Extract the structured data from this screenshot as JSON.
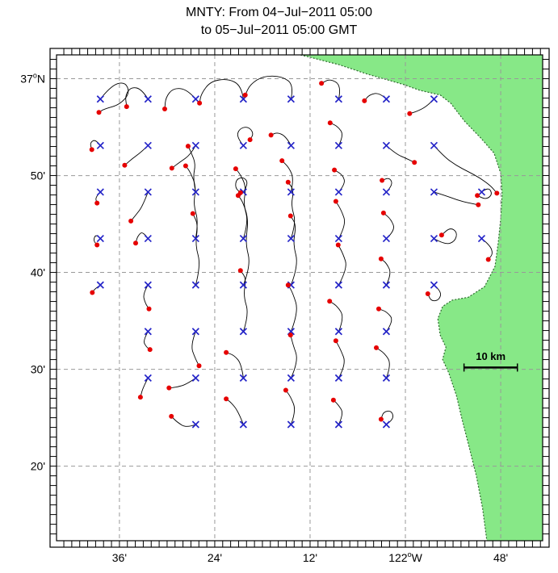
{
  "title": {
    "line1": "MNTY: From 04−Jul−2011 05:00",
    "line2": "to 05−Jul−2011 05:00 GMT"
  },
  "colors": {
    "land": "#87e887",
    "coast": "#2f6b2f",
    "grid": "#999999",
    "frame": "#000000",
    "trajectory": "#000000",
    "start_marker": "#2424c8",
    "end_marker": "#e60000",
    "text": "#000000"
  },
  "chart_data": {
    "type": "line",
    "subtype": "drifter-trajectory-map",
    "title": "MNTY: From 04−Jul−2011 05:00 to 05−Jul−2011 05:00 GMT",
    "xlim": [
      -122.732,
      -121.712
    ],
    "ylim": [
      36.205,
      37.041
    ],
    "grid": "dashed",
    "x_ticks": [
      {
        "value": -122.6,
        "label": "36'"
      },
      {
        "value": -122.4,
        "label": "24'"
      },
      {
        "value": -122.2,
        "label": "12'"
      },
      {
        "value": -122.0,
        "label": "122°W"
      },
      {
        "value": -121.8,
        "label": "48'"
      }
    ],
    "y_ticks": [
      {
        "value": 37.0,
        "label": "37°N"
      },
      {
        "value": 36.8333,
        "label": "50'"
      },
      {
        "value": 36.6667,
        "label": "40'"
      },
      {
        "value": 36.5,
        "label": "30'"
      },
      {
        "value": 36.3333,
        "label": "20'"
      }
    ],
    "scale_bar": {
      "label": "10 km",
      "lat": 36.503,
      "lon_from": -121.877,
      "lon_to": -121.765,
      "label_lat": 36.516
    },
    "markers": {
      "start": "blue-x",
      "end": "red-dot"
    },
    "land_polygon": [
      [
        -122.22,
        37.041
      ],
      [
        -122.139,
        37.024
      ],
      [
        -122.08,
        37.008
      ],
      [
        -122.004,
        36.99
      ],
      [
        -121.97,
        36.98
      ],
      [
        -121.927,
        36.972
      ],
      [
        -121.905,
        36.958
      ],
      [
        -121.876,
        36.927
      ],
      [
        -121.843,
        36.899
      ],
      [
        -121.814,
        36.872
      ],
      [
        -121.8,
        36.837
      ],
      [
        -121.797,
        36.802
      ],
      [
        -121.8,
        36.76
      ],
      [
        -121.805,
        36.719
      ],
      [
        -121.812,
        36.677
      ],
      [
        -121.834,
        36.642
      ],
      [
        -121.868,
        36.624
      ],
      [
        -121.902,
        36.619
      ],
      [
        -121.922,
        36.608
      ],
      [
        -121.932,
        36.587
      ],
      [
        -121.927,
        36.559
      ],
      [
        -121.915,
        36.538
      ],
      [
        -121.922,
        36.517
      ],
      [
        -121.909,
        36.494
      ],
      [
        -121.893,
        36.455
      ],
      [
        -121.881,
        36.413
      ],
      [
        -121.868,
        36.372
      ],
      [
        -121.851,
        36.316
      ],
      [
        -121.838,
        36.261
      ],
      [
        -121.829,
        36.205
      ],
      [
        -121.712,
        36.205
      ],
      [
        -121.712,
        37.041
      ]
    ],
    "trajectories": [
      [
        [
          -122.64,
          36.965
        ],
        [
          -122.618,
          36.988
        ],
        [
          -122.588,
          36.995
        ],
        [
          -122.578,
          36.975
        ],
        [
          -122.6,
          36.955
        ],
        [
          -122.632,
          36.948
        ],
        [
          -122.643,
          36.942
        ]
      ],
      [
        [
          -122.54,
          36.965
        ],
        [
          -122.553,
          36.982
        ],
        [
          -122.575,
          36.986
        ],
        [
          -122.588,
          36.972
        ],
        [
          -122.585,
          36.952
        ]
      ],
      [
        [
          -122.44,
          36.965
        ],
        [
          -122.458,
          36.982
        ],
        [
          -122.487,
          36.984
        ],
        [
          -122.503,
          36.968
        ],
        [
          -122.505,
          36.948
        ]
      ],
      [
        [
          -122.34,
          36.965
        ],
        [
          -122.344,
          36.988
        ],
        [
          -122.372,
          37.0
        ],
        [
          -122.408,
          36.996
        ],
        [
          -122.428,
          36.975
        ],
        [
          -122.432,
          36.958
        ]
      ],
      [
        [
          -122.24,
          36.965
        ],
        [
          -122.234,
          36.989
        ],
        [
          -122.258,
          37.004
        ],
        [
          -122.298,
          37.005
        ],
        [
          -122.326,
          36.99
        ],
        [
          -122.336,
          36.972
        ]
      ],
      [
        [
          -122.14,
          36.965
        ],
        [
          -122.134,
          36.988
        ],
        [
          -122.158,
          37.0
        ],
        [
          -122.176,
          36.992
        ]
      ],
      [
        [
          -122.04,
          36.965
        ],
        [
          -122.054,
          36.976
        ],
        [
          -122.075,
          36.973
        ],
        [
          -122.086,
          36.962
        ]
      ],
      [
        [
          -121.94,
          36.965
        ],
        [
          -121.954,
          36.953
        ],
        [
          -121.975,
          36.944
        ],
        [
          -121.991,
          36.94
        ]
      ],
      [
        [
          -122.64,
          36.885
        ],
        [
          -122.65,
          36.896
        ],
        [
          -122.662,
          36.89
        ],
        [
          -122.658,
          36.878
        ]
      ],
      [
        [
          -122.54,
          36.885
        ],
        [
          -122.554,
          36.874
        ],
        [
          -122.574,
          36.862
        ],
        [
          -122.589,
          36.851
        ]
      ],
      [
        [
          -122.44,
          36.885
        ],
        [
          -122.451,
          36.869
        ],
        [
          -122.474,
          36.856
        ],
        [
          -122.49,
          36.846
        ]
      ],
      [
        [
          -122.34,
          36.885
        ],
        [
          -122.354,
          36.899
        ],
        [
          -122.349,
          36.914
        ],
        [
          -122.33,
          36.918
        ],
        [
          -122.318,
          36.906
        ],
        [
          -122.326,
          36.895
        ]
      ],
      [
        [
          -122.24,
          36.885
        ],
        [
          -122.25,
          36.9
        ],
        [
          -122.268,
          36.908
        ],
        [
          -122.282,
          36.903
        ]
      ],
      [
        [
          -122.14,
          36.885
        ],
        [
          -122.129,
          36.903
        ],
        [
          -122.142,
          36.918
        ],
        [
          -122.158,
          36.924
        ]
      ],
      [
        [
          -122.04,
          36.885
        ],
        [
          -122.021,
          36.871
        ],
        [
          -121.996,
          36.862
        ],
        [
          -121.981,
          36.856
        ]
      ],
      [
        [
          -121.94,
          36.885
        ],
        [
          -121.919,
          36.866
        ],
        [
          -121.894,
          36.851
        ],
        [
          -121.868,
          36.84
        ],
        [
          -121.843,
          36.829
        ],
        [
          -121.82,
          36.815
        ],
        [
          -121.808,
          36.803
        ]
      ],
      [
        [
          -122.64,
          36.805
        ],
        [
          -122.651,
          36.796
        ],
        [
          -122.647,
          36.786
        ]
      ],
      [
        [
          -122.54,
          36.805
        ],
        [
          -122.551,
          36.781
        ],
        [
          -122.566,
          36.765
        ],
        [
          -122.576,
          36.755
        ]
      ],
      [
        [
          -122.44,
          36.805
        ],
        [
          -122.446,
          36.829
        ],
        [
          -122.44,
          36.853
        ],
        [
          -122.449,
          36.872
        ],
        [
          -122.456,
          36.884
        ]
      ],
      [
        [
          -122.34,
          36.805
        ],
        [
          -122.329,
          36.819
        ],
        [
          -122.339,
          36.831
        ],
        [
          -122.355,
          36.827
        ],
        [
          -122.357,
          36.812
        ],
        [
          -122.346,
          36.804
        ]
      ],
      [
        [
          -122.24,
          36.805
        ],
        [
          -122.234,
          36.827
        ],
        [
          -122.244,
          36.847
        ],
        [
          -122.259,
          36.859
        ]
      ],
      [
        [
          -122.14,
          36.805
        ],
        [
          -122.126,
          36.819
        ],
        [
          -122.131,
          36.834
        ],
        [
          -122.149,
          36.843
        ]
      ],
      [
        [
          -122.04,
          36.805
        ],
        [
          -122.026,
          36.817
        ],
        [
          -122.033,
          36.83
        ],
        [
          -122.049,
          36.825
        ]
      ],
      [
        [
          -121.94,
          36.805
        ],
        [
          -121.916,
          36.799
        ],
        [
          -121.891,
          36.791
        ],
        [
          -121.866,
          36.786
        ],
        [
          -121.847,
          36.783
        ]
      ],
      [
        [
          -121.84,
          36.805
        ],
        [
          -121.826,
          36.814
        ],
        [
          -121.817,
          36.801
        ],
        [
          -121.831,
          36.792
        ],
        [
          -121.849,
          36.799
        ]
      ],
      [
        [
          -122.64,
          36.725
        ],
        [
          -122.649,
          36.733
        ],
        [
          -122.655,
          36.722
        ],
        [
          -122.647,
          36.714
        ]
      ],
      [
        [
          -122.54,
          36.725
        ],
        [
          -122.551,
          36.738
        ],
        [
          -122.562,
          36.729
        ],
        [
          -122.566,
          36.717
        ]
      ],
      [
        [
          -122.44,
          36.725
        ],
        [
          -122.434,
          36.754
        ],
        [
          -122.445,
          36.784
        ],
        [
          -122.439,
          36.814
        ],
        [
          -122.451,
          36.839
        ],
        [
          -122.461,
          36.85
        ]
      ],
      [
        [
          -122.34,
          36.725
        ],
        [
          -122.329,
          36.754
        ],
        [
          -122.34,
          36.784
        ],
        [
          -122.334,
          36.814
        ],
        [
          -122.347,
          36.836
        ],
        [
          -122.356,
          36.845
        ]
      ],
      [
        [
          -122.24,
          36.725
        ],
        [
          -122.229,
          36.753
        ],
        [
          -122.24,
          36.781
        ],
        [
          -122.234,
          36.808
        ],
        [
          -122.246,
          36.822
        ]
      ],
      [
        [
          -122.14,
          36.725
        ],
        [
          -122.124,
          36.749
        ],
        [
          -122.134,
          36.773
        ],
        [
          -122.146,
          36.789
        ]
      ],
      [
        [
          -122.04,
          36.725
        ],
        [
          -122.021,
          36.739
        ],
        [
          -122.03,
          36.758
        ],
        [
          -122.046,
          36.769
        ]
      ],
      [
        [
          -121.94,
          36.725
        ],
        [
          -121.916,
          36.714
        ],
        [
          -121.896,
          36.72
        ],
        [
          -121.891,
          36.736
        ],
        [
          -121.906,
          36.744
        ],
        [
          -121.924,
          36.731
        ]
      ],
      [
        [
          -121.84,
          36.725
        ],
        [
          -121.823,
          36.714
        ],
        [
          -121.816,
          36.699
        ],
        [
          -121.826,
          36.689
        ]
      ],
      [
        [
          -122.64,
          36.645
        ],
        [
          -122.651,
          36.639
        ],
        [
          -122.657,
          36.632
        ]
      ],
      [
        [
          -122.54,
          36.645
        ],
        [
          -122.551,
          36.63
        ],
        [
          -122.546,
          36.614
        ],
        [
          -122.538,
          36.604
        ]
      ],
      [
        [
          -122.44,
          36.645
        ],
        [
          -122.429,
          36.679
        ],
        [
          -122.441,
          36.714
        ],
        [
          -122.435,
          36.749
        ],
        [
          -122.446,
          36.768
        ]
      ],
      [
        [
          -122.34,
          36.645
        ],
        [
          -122.324,
          36.679
        ],
        [
          -122.336,
          36.717
        ],
        [
          -122.329,
          36.757
        ],
        [
          -122.341,
          36.788
        ],
        [
          -122.351,
          36.799
        ]
      ],
      [
        [
          -122.24,
          36.645
        ],
        [
          -122.224,
          36.679
        ],
        [
          -122.236,
          36.716
        ],
        [
          -122.229,
          36.748
        ],
        [
          -122.241,
          36.764
        ]
      ],
      [
        [
          -122.14,
          36.645
        ],
        [
          -122.121,
          36.674
        ],
        [
          -122.131,
          36.699
        ],
        [
          -122.141,
          36.714
        ]
      ],
      [
        [
          -122.04,
          36.645
        ],
        [
          -122.029,
          36.664
        ],
        [
          -122.039,
          36.682
        ],
        [
          -122.051,
          36.69
        ]
      ],
      [
        [
          -121.94,
          36.645
        ],
        [
          -121.924,
          36.634
        ],
        [
          -121.929,
          36.619
        ],
        [
          -121.946,
          36.617
        ],
        [
          -121.953,
          36.63
        ]
      ],
      [
        [
          -122.54,
          36.565
        ],
        [
          -122.551,
          36.549
        ],
        [
          -122.543,
          36.538
        ],
        [
          -122.536,
          36.534
        ]
      ],
      [
        [
          -122.44,
          36.565
        ],
        [
          -122.451,
          36.541
        ],
        [
          -122.441,
          36.519
        ],
        [
          -122.433,
          36.506
        ]
      ],
      [
        [
          -122.34,
          36.565
        ],
        [
          -122.328,
          36.595
        ],
        [
          -122.34,
          36.626
        ],
        [
          -122.334,
          36.656
        ],
        [
          -122.346,
          36.67
        ]
      ],
      [
        [
          -122.24,
          36.565
        ],
        [
          -122.224,
          36.599
        ],
        [
          -122.236,
          36.631
        ],
        [
          -122.246,
          36.645
        ]
      ],
      [
        [
          -122.14,
          36.565
        ],
        [
          -122.128,
          36.589
        ],
        [
          -122.143,
          36.609
        ],
        [
          -122.159,
          36.617
        ]
      ],
      [
        [
          -122.04,
          36.565
        ],
        [
          -122.024,
          36.584
        ],
        [
          -122.039,
          36.599
        ],
        [
          -122.056,
          36.604
        ]
      ],
      [
        [
          -122.54,
          36.485
        ],
        [
          -122.551,
          36.468
        ],
        [
          -122.556,
          36.452
        ]
      ],
      [
        [
          -122.44,
          36.485
        ],
        [
          -122.459,
          36.474
        ],
        [
          -122.481,
          36.469
        ],
        [
          -122.496,
          36.468
        ]
      ],
      [
        [
          -122.34,
          36.485
        ],
        [
          -122.344,
          36.509
        ],
        [
          -122.359,
          36.524
        ],
        [
          -122.376,
          36.529
        ]
      ],
      [
        [
          -122.24,
          36.485
        ],
        [
          -122.224,
          36.514
        ],
        [
          -122.236,
          36.543
        ],
        [
          -122.241,
          36.559
        ]
      ],
      [
        [
          -122.14,
          36.485
        ],
        [
          -122.124,
          36.509
        ],
        [
          -122.136,
          36.534
        ],
        [
          -122.146,
          36.549
        ]
      ],
      [
        [
          -122.04,
          36.485
        ],
        [
          -122.029,
          36.509
        ],
        [
          -122.044,
          36.528
        ],
        [
          -122.061,
          36.537
        ]
      ],
      [
        [
          -122.44,
          36.405
        ],
        [
          -122.459,
          36.399
        ],
        [
          -122.479,
          36.409
        ],
        [
          -122.491,
          36.419
        ]
      ],
      [
        [
          -122.34,
          36.405
        ],
        [
          -122.351,
          36.428
        ],
        [
          -122.366,
          36.443
        ],
        [
          -122.376,
          36.449
        ]
      ],
      [
        [
          -122.24,
          36.405
        ],
        [
          -122.229,
          36.429
        ],
        [
          -122.241,
          36.453
        ],
        [
          -122.251,
          36.464
        ]
      ],
      [
        [
          -122.14,
          36.405
        ],
        [
          -122.129,
          36.424
        ],
        [
          -122.141,
          36.439
        ],
        [
          -122.151,
          36.447
        ]
      ],
      [
        [
          -122.04,
          36.405
        ],
        [
          -122.024,
          36.414
        ],
        [
          -122.029,
          36.429
        ],
        [
          -122.046,
          36.427
        ],
        [
          -122.051,
          36.414
        ]
      ]
    ]
  }
}
